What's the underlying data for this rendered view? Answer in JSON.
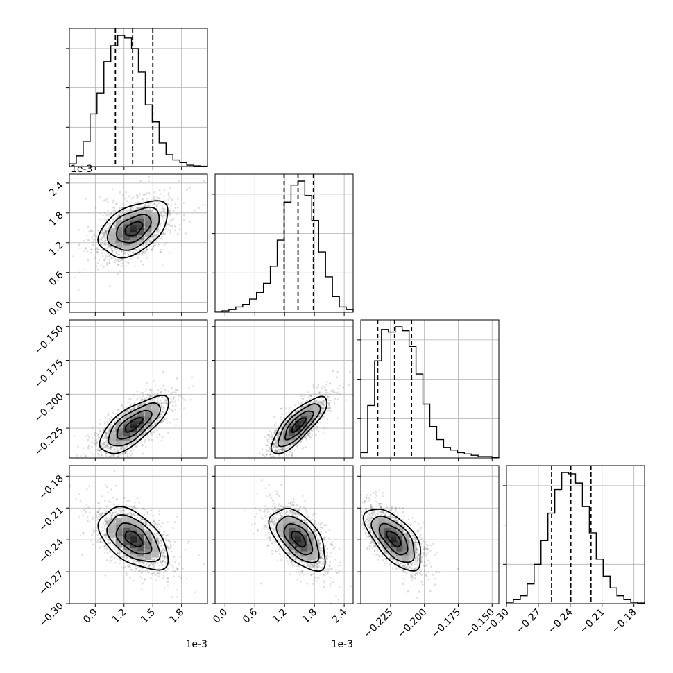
{
  "chart_data": {
    "type": "corner",
    "description_note": "",
    "offset_labels": {
      "col0_x": "1e-3",
      "col1_x": "1e-3",
      "row1_y": "1e-3"
    },
    "parameters": [
      {
        "index": 0,
        "range": [
          0.00063,
          0.00207
        ],
        "ticks": [
          0.9,
          1.2,
          1.5,
          1.8
        ],
        "tick_labels": [
          "0.9",
          "1.2",
          "1.5",
          "1.8"
        ],
        "scale": 0.001,
        "quantiles": [
          0.00111,
          0.00129,
          0.0015
        ],
        "hist": [
          0.02,
          0.08,
          0.19,
          0.4,
          0.56,
          0.8,
          0.92,
          1.0,
          0.98,
          0.9,
          0.72,
          0.47,
          0.34,
          0.18,
          0.09,
          0.05,
          0.03,
          0.01,
          0.005,
          0.002
        ],
        "mean": 0.0013,
        "sd": 0.00018
      },
      {
        "index": 1,
        "range": [
          -0.0002,
          0.00258
        ],
        "ticks": [
          0.0,
          0.6,
          1.2,
          1.8,
          2.4
        ],
        "tick_labels": [
          "0.0",
          "0.6",
          "1.2",
          "1.8",
          "2.4"
        ],
        "scale": 0.001,
        "quantiles": [
          0.00119,
          0.00147,
          0.00178
        ],
        "hist": [
          0.005,
          0.01,
          0.02,
          0.04,
          0.06,
          0.1,
          0.15,
          0.22,
          0.35,
          0.55,
          0.84,
          0.97,
          1.0,
          0.89,
          0.7,
          0.46,
          0.27,
          0.12,
          0.04,
          0.02
        ],
        "mean": 0.00148,
        "sd": 0.00028
      },
      {
        "index": 2,
        "range": [
          -0.247,
          -0.145
        ],
        "ticks": [
          -0.225,
          -0.2,
          -0.175,
          -0.15
        ],
        "tick_labels": [
          "−0.225",
          "−0.200",
          "−0.175",
          "−0.150"
        ],
        "scale": 1,
        "quantiles": [
          -0.2345,
          -0.222,
          -0.2095
        ],
        "hist": [
          0.04,
          0.4,
          0.74,
          0.98,
          0.96,
          1.0,
          0.97,
          0.85,
          0.64,
          0.41,
          0.24,
          0.14,
          0.08,
          0.06,
          0.04,
          0.03,
          0.02,
          0.01,
          0.01,
          0.005
        ],
        "mean": -0.2225,
        "sd": 0.0105
      },
      {
        "index": 3,
        "range": [
          -0.3,
          -0.17
        ],
        "ticks": [
          -0.3,
          -0.27,
          -0.24,
          -0.21,
          -0.18
        ],
        "tick_labels": [
          "−0.30",
          "−0.27",
          "−0.24",
          "−0.21",
          "−0.18"
        ],
        "scale": 1,
        "quantiles": [
          -0.2575,
          -0.2395,
          -0.2205
        ],
        "hist": [
          0.01,
          0.03,
          0.06,
          0.15,
          0.3,
          0.48,
          0.69,
          0.87,
          1.0,
          0.99,
          0.92,
          0.74,
          0.54,
          0.34,
          0.21,
          0.12,
          0.06,
          0.03,
          0.01,
          0.005
        ],
        "mean": -0.239,
        "sd": 0.0145
      }
    ],
    "pairs": [
      {
        "row": 1,
        "col": 0,
        "corr": 0.45
      },
      {
        "row": 2,
        "col": 0,
        "corr": 0.72
      },
      {
        "row": 2,
        "col": 1,
        "corr": 0.8
      },
      {
        "row": 3,
        "col": 0,
        "corr": -0.5
      },
      {
        "row": 3,
        "col": 1,
        "corr": -0.55
      },
      {
        "row": 3,
        "col": 2,
        "corr": -0.62
      }
    ],
    "grid": true,
    "contour_levels_sigma": [
      0.5,
      1.0,
      1.5,
      2.0
    ],
    "colors": {
      "line": "#000000",
      "grid": "#b0b0b0",
      "points": "#000000"
    }
  }
}
